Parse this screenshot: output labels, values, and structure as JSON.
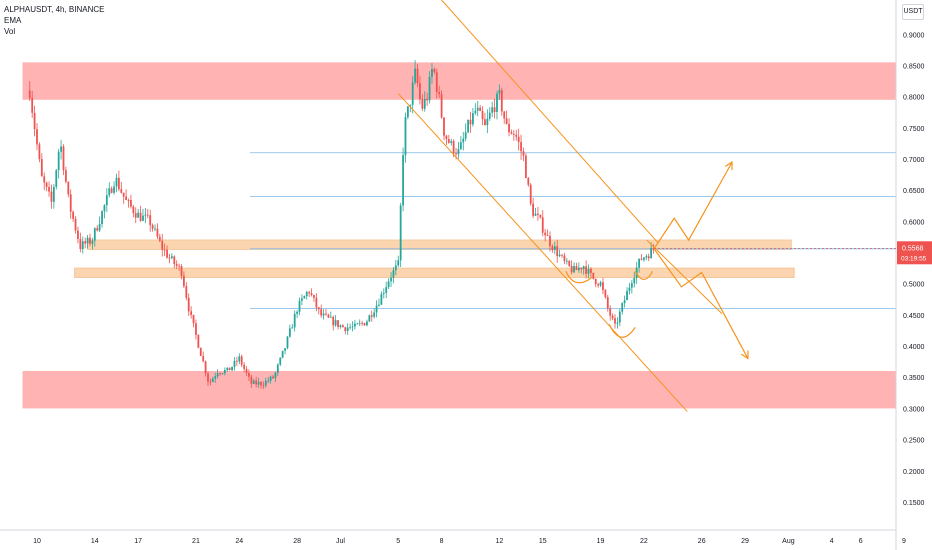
{
  "legend": {
    "symbol": "ALPHAUSDT, 4h, BINANCE",
    "indicator_1": "EMA",
    "indicator_2": "Vol"
  },
  "currency_label": "USDT",
  "price_badge": {
    "price": "0.5568",
    "countdown": "03:19:55"
  },
  "chart_data": {
    "type": "candlestick",
    "y_axis": {
      "ylim": [
        0.105,
        0.955
      ],
      "ticks": [
        "0.1500",
        "0.2000",
        "0.2500",
        "0.3000",
        "0.3500",
        "0.4000",
        "0.4500",
        "0.5000",
        "0.5500",
        "0.6000",
        "0.6500",
        "0.7000",
        "0.7500",
        "0.8000",
        "0.8500",
        "0.9000"
      ]
    },
    "x_axis": {
      "ticks": [
        {
          "label": "10",
          "t": 10
        },
        {
          "label": "14",
          "t": 14
        },
        {
          "label": "17",
          "t": 17
        },
        {
          "label": "21",
          "t": 21
        },
        {
          "label": "24",
          "t": 24
        },
        {
          "label": "28",
          "t": 28
        },
        {
          "label": "Jul",
          "t": 31
        },
        {
          "label": "5",
          "t": 35
        },
        {
          "label": "8",
          "t": 38
        },
        {
          "label": "12",
          "t": 42
        },
        {
          "label": "15",
          "t": 45
        },
        {
          "label": "19",
          "t": 49
        },
        {
          "label": "22",
          "t": 52
        },
        {
          "label": "26",
          "t": 56
        },
        {
          "label": "29",
          "t": 59
        },
        {
          "label": "Aug",
          "t": 62
        },
        {
          "label": "4",
          "t": 65
        },
        {
          "label": "6",
          "t": 67
        },
        {
          "label": "9",
          "t": 70
        }
      ]
    },
    "colors": {
      "up": "#26a69a",
      "down": "#ef5350",
      "zone_red": "#ffb3b3",
      "zone_orange": "#fbd5b0",
      "drawing": "#f7931e",
      "hline": "#7fb7e6",
      "last_price": "#ef5350"
    },
    "price_path": [
      [
        9.5,
        0.81
      ],
      [
        10.3,
        0.67
      ],
      [
        11.0,
        0.63
      ],
      [
        11.6,
        0.73
      ],
      [
        12.2,
        0.63
      ],
      [
        13.0,
        0.56
      ],
      [
        13.8,
        0.57
      ],
      [
        14.6,
        0.62
      ],
      [
        15.4,
        0.67
      ],
      [
        16.2,
        0.63
      ],
      [
        17.0,
        0.61
      ],
      [
        17.8,
        0.6
      ],
      [
        18.6,
        0.56
      ],
      [
        19.2,
        0.54
      ],
      [
        20.0,
        0.52
      ],
      [
        20.6,
        0.45
      ],
      [
        21.2,
        0.4
      ],
      [
        21.9,
        0.34
      ],
      [
        22.5,
        0.36
      ],
      [
        23.2,
        0.36
      ],
      [
        24.0,
        0.38
      ],
      [
        24.8,
        0.34
      ],
      [
        25.6,
        0.34
      ],
      [
        26.4,
        0.35
      ],
      [
        27.2,
        0.4
      ],
      [
        28.0,
        0.46
      ],
      [
        28.8,
        0.49
      ],
      [
        29.6,
        0.45
      ],
      [
        30.4,
        0.44
      ],
      [
        31.2,
        0.43
      ],
      [
        32.0,
        0.43
      ],
      [
        32.8,
        0.44
      ],
      [
        33.6,
        0.47
      ],
      [
        34.4,
        0.51
      ],
      [
        35.0,
        0.53
      ],
      [
        35.4,
        0.75
      ],
      [
        35.8,
        0.79
      ],
      [
        36.2,
        0.84
      ],
      [
        36.6,
        0.78
      ],
      [
        37.0,
        0.8
      ],
      [
        37.4,
        0.85
      ],
      [
        37.8,
        0.8
      ],
      [
        38.2,
        0.74
      ],
      [
        38.7,
        0.72
      ],
      [
        39.2,
        0.71
      ],
      [
        39.8,
        0.75
      ],
      [
        40.4,
        0.78
      ],
      [
        41.0,
        0.75
      ],
      [
        41.5,
        0.78
      ],
      [
        42.0,
        0.8
      ],
      [
        42.5,
        0.75
      ],
      [
        43.1,
        0.74
      ],
      [
        43.7,
        0.7
      ],
      [
        44.2,
        0.62
      ],
      [
        44.8,
        0.6
      ],
      [
        45.4,
        0.57
      ],
      [
        46.0,
        0.55
      ],
      [
        46.6,
        0.53
      ],
      [
        47.2,
        0.52
      ],
      [
        47.8,
        0.53
      ],
      [
        48.4,
        0.51
      ],
      [
        49.0,
        0.5
      ],
      [
        49.5,
        0.46
      ],
      [
        50.0,
        0.43
      ],
      [
        50.6,
        0.47
      ],
      [
        51.2,
        0.51
      ],
      [
        51.8,
        0.54
      ],
      [
        52.4,
        0.55
      ],
      [
        52.7,
        0.557
      ]
    ],
    "zones": [
      {
        "kind": "red",
        "low": 0.795,
        "high": 0.855,
        "t_start": 9.0,
        "t_end": 71.0
      },
      {
        "kind": "red",
        "low": 0.3,
        "high": 0.36,
        "t_start": 9.0,
        "t_end": 71.0
      },
      {
        "kind": "orange",
        "low": 0.555,
        "high": 0.57,
        "t_start": 13.5,
        "t_end": 62.2
      },
      {
        "kind": "orange",
        "low": 0.51,
        "high": 0.525,
        "t_start": 12.6,
        "t_end": 62.4
      }
    ],
    "horizontal_lines": [
      0.71,
      0.64,
      0.556,
      0.46
    ],
    "channel_lines": [
      {
        "points": [
          [
            38.0,
            0.955
          ],
          [
            53.0,
            0.565
          ]
        ]
      },
      {
        "points": [
          [
            35.0,
            0.805
          ],
          [
            55.0,
            0.295
          ]
        ]
      },
      {
        "points": [
          [
            52.2,
            0.57
          ],
          [
            57.4,
            0.452
          ]
        ]
      }
    ],
    "curves": [
      {
        "points": [
          [
            46.6,
            0.52
          ],
          [
            47.2,
            0.505
          ],
          [
            48.4,
            0.51
          ]
        ]
      },
      {
        "points": [
          [
            49.6,
            0.435
          ],
          [
            50.4,
            0.412
          ],
          [
            51.4,
            0.43
          ]
        ]
      },
      {
        "points": [
          [
            51.4,
            0.52
          ],
          [
            52.0,
            0.51
          ],
          [
            52.6,
            0.52
          ]
        ]
      }
    ],
    "arrows": [
      {
        "points": [
          [
            52.7,
            0.556
          ],
          [
            54.1,
            0.605
          ],
          [
            55.1,
            0.57
          ],
          [
            58.1,
            0.695
          ]
        ]
      },
      {
        "points": [
          [
            52.7,
            0.556
          ],
          [
            54.6,
            0.495
          ],
          [
            56.0,
            0.518
          ],
          [
            59.2,
            0.38
          ]
        ]
      }
    ],
    "last_price": 0.5568
  }
}
